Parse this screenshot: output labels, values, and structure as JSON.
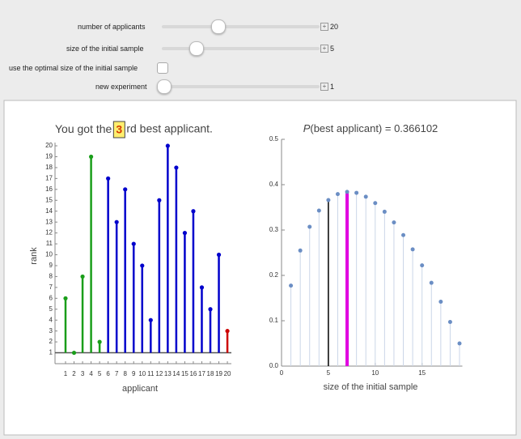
{
  "controls": [
    {
      "label": "number of applicants",
      "value": 20
    },
    {
      "label": "size of the initial sample",
      "value": 5
    },
    {
      "label": "use the optimal size of the initial sample"
    },
    {
      "label": "new experiment",
      "value": 1
    }
  ],
  "left_chart": {
    "type": "stem",
    "title_before": "You got the ",
    "title_rank": "3",
    "title_after": "rd best applicant.",
    "xlabel": "applicant",
    "ylabel": "rank",
    "categories": [
      "1",
      "2",
      "3",
      "4",
      "5",
      "6",
      "7",
      "8",
      "9",
      "10",
      "11",
      "12",
      "13",
      "14",
      "15",
      "16",
      "17",
      "18",
      "19",
      "20"
    ],
    "values": [
      6,
      1,
      8,
      19,
      2,
      17,
      13,
      16,
      11,
      9,
      4,
      15,
      20,
      18,
      12,
      14,
      7,
      5,
      10,
      3
    ],
    "colors": [
      "#1a9e1a",
      "#1a9e1a",
      "#1a9e1a",
      "#1a9e1a",
      "#1a9e1a",
      "#0000cc",
      "#0000cc",
      "#0000cc",
      "#0000cc",
      "#0000cc",
      "#0000cc",
      "#0000cc",
      "#0000cc",
      "#0000cc",
      "#0000cc",
      "#0000cc",
      "#0000cc",
      "#0000cc",
      "#0000cc",
      "#cc0000"
    ],
    "ylim": [
      0,
      20.3
    ],
    "yticks": [
      1,
      2,
      3,
      4,
      5,
      6,
      7,
      8,
      9,
      10,
      11,
      12,
      13,
      14,
      15,
      16,
      17,
      18,
      19,
      20
    ]
  },
  "right_chart": {
    "type": "stem",
    "title_italic": "P",
    "title_rest": "(best applicant) = 0.366102",
    "xlabel": "size of the initial sample",
    "x": [
      1,
      2,
      3,
      4,
      5,
      6,
      7,
      8,
      9,
      10,
      11,
      12,
      13,
      14,
      15,
      16,
      17,
      18,
      19
    ],
    "values": [
      0.1774,
      0.2548,
      0.3072,
      0.3429,
      0.3661,
      0.3793,
      0.3842,
      0.382,
      0.3734,
      0.3594,
      0.3403,
      0.3167,
      0.2889,
      0.2573,
      0.2221,
      0.1836,
      0.142,
      0.0974,
      0.05
    ],
    "color": "#6b8ec4",
    "highlights": [
      {
        "x": 5,
        "color": "#000000"
      },
      {
        "x": 7,
        "color": "#e000e0"
      }
    ],
    "xlim": [
      0,
      19.3
    ],
    "ylim": [
      0,
      0.5
    ],
    "xticks": [
      0,
      5,
      10,
      15
    ],
    "yticks": [
      {
        "value": 0,
        "label": "0.0"
      },
      {
        "value": 0.1,
        "label": "0.1"
      },
      {
        "value": 0.2,
        "label": "0.2"
      },
      {
        "value": 0.3,
        "label": "0.3"
      },
      {
        "value": 0.4,
        "label": "0.4"
      },
      {
        "value": 0.5,
        "label": "0.5"
      }
    ]
  }
}
